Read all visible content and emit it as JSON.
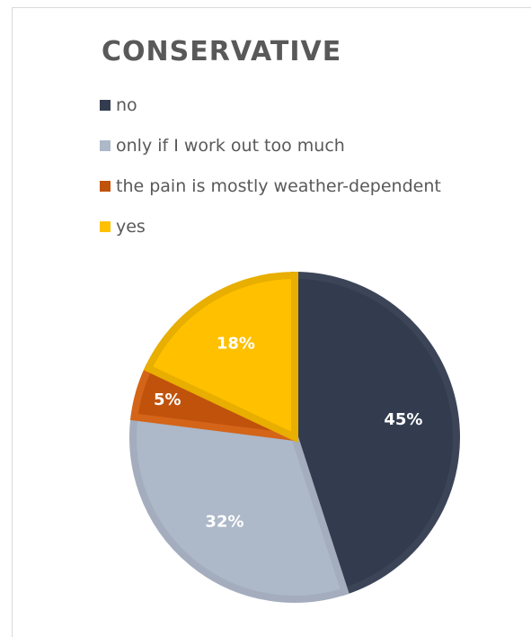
{
  "chart_data": {
    "type": "pie",
    "title": "CONSERVATIVE",
    "legend_position": "top-left",
    "slices": [
      {
        "name": "no",
        "value": 45,
        "label": "45%",
        "color": "#333c4f",
        "edge": "#3c4558"
      },
      {
        "name": "only if I work out too much",
        "value": 32,
        "label": "32%",
        "color": "#adb8c9",
        "edge": "#a3adbe"
      },
      {
        "name": "the pain is mostly weather-dependent",
        "value": 5,
        "label": "5%",
        "color": "#c0520c",
        "edge": "#d46418"
      },
      {
        "name": "yes",
        "value": 18,
        "label": "18%",
        "color": "#ffc000",
        "edge": "#e8ae00"
      }
    ]
  }
}
